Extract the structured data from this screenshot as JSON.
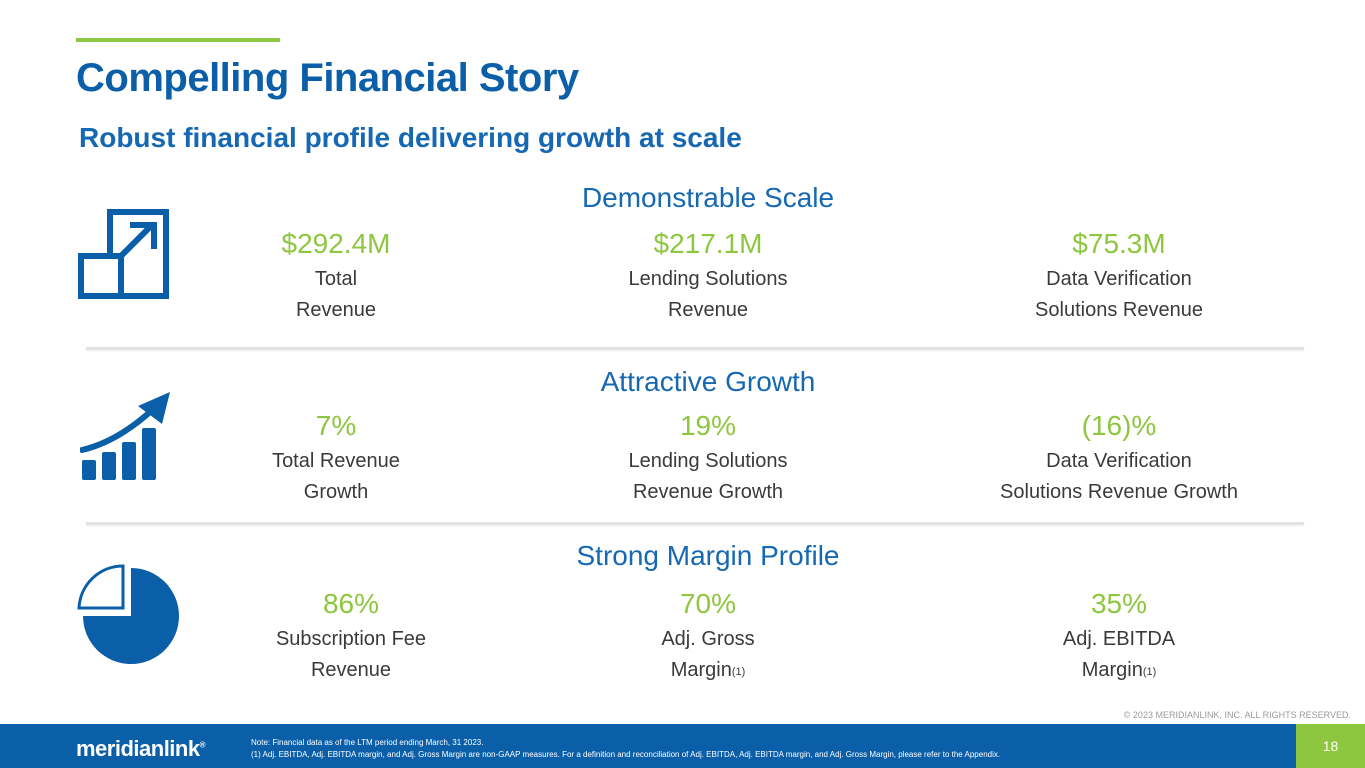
{
  "header": {
    "title": "Compelling Financial Story",
    "subtitle": "Robust financial profile delivering growth at scale"
  },
  "sections": [
    {
      "heading": "Demonstrable Scale",
      "icon": "expand-icon",
      "metrics": [
        {
          "value": "$292.4M",
          "label_line1": "Total",
          "label_line2": "Revenue"
        },
        {
          "value": "$217.1M",
          "label_line1": "Lending Solutions",
          "label_line2": "Revenue"
        },
        {
          "value": "$75.3M",
          "label_line1": "Data Verification",
          "label_line2": "Solutions Revenue"
        }
      ]
    },
    {
      "heading": "Attractive Growth",
      "icon": "growth-chart-icon",
      "metrics": [
        {
          "value": "7%",
          "label_line1": "Total Revenue",
          "label_line2": "Growth"
        },
        {
          "value": "19%",
          "label_line1": "Lending Solutions",
          "label_line2": "Revenue Growth"
        },
        {
          "value": "(16)%",
          "label_line1": "Data Verification",
          "label_line2": "Solutions Revenue Growth"
        }
      ]
    },
    {
      "heading": "Strong Margin Profile",
      "icon": "pie-chart-icon",
      "metrics": [
        {
          "value": "86%",
          "label_line1": "Subscription Fee",
          "label_line2": "Revenue"
        },
        {
          "value": "70%",
          "label_line1": "Adj. Gross",
          "label_line2": "Margin",
          "footnote": "(1)"
        },
        {
          "value": "35%",
          "label_line1": "Adj. EBITDA",
          "label_line2": "Margin",
          "footnote": "(1)"
        }
      ]
    }
  ],
  "footer": {
    "logo_text": "meridianlink",
    "logo_mark": "®",
    "note_line1": "Note: Financial data as of the LTM period ending March, 31 2023.",
    "note_line2": "(1)     Adj. EBITDA, Adj. EBITDA margin, and Adj. Gross Margin are non-GAAP measures. For a definition and reconciliation of Adj. EBITDA, Adj. EBITDA margin, and Adj. Gross Margin, please refer to the Appendix.",
    "copyright": "© 2023 MERIDIANLINK, INC. ALL RIGHTS RESERVED.",
    "page_number": "18"
  },
  "colors": {
    "brand_blue": "#0B5FA8",
    "accent_green": "#8DC63F",
    "text_gray": "#3A3A3A"
  }
}
